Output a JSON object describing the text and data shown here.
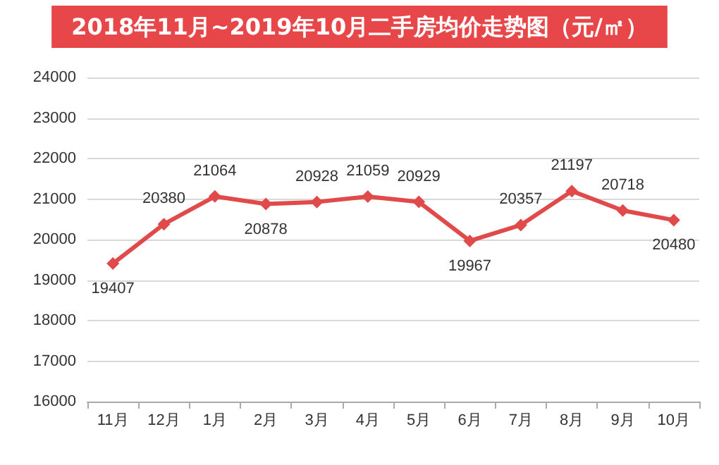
{
  "chart_data": {
    "type": "line",
    "title": "2018年11月~2019年10月二手房均价走势图（元/㎡）",
    "categories": [
      "11月",
      "12月",
      "1月",
      "2月",
      "3月",
      "4月",
      "5月",
      "6月",
      "7月",
      "8月",
      "9月",
      "10月"
    ],
    "series": [
      {
        "color": "#e04a4a",
        "values": [
          19407,
          20380,
          21064,
          20878,
          20928,
          21059,
          20929,
          19967,
          20357,
          21197,
          20718,
          20480
        ]
      }
    ],
    "ylim": [
      16000,
      24000
    ],
    "yticks": [
      16000,
      17000,
      18000,
      19000,
      20000,
      21000,
      22000,
      23000,
      24000
    ],
    "grid": "y",
    "marker": "diamond",
    "line_style": "solid",
    "data_labels": true
  }
}
